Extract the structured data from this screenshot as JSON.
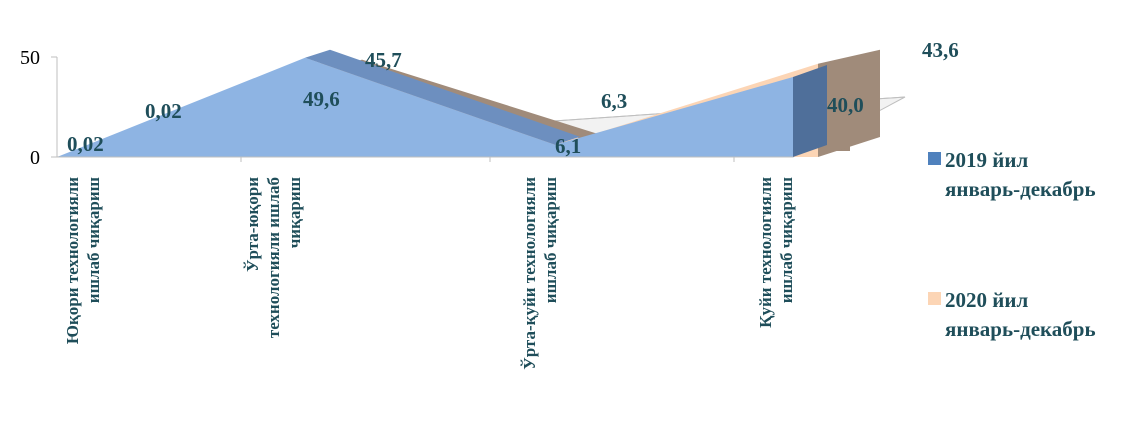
{
  "chart_data": {
    "type": "area",
    "subtype": "3d-area",
    "categories": [
      "Юқори технологияли ишлаб чиқариш",
      "Ўрта-юқори технологияли ишлаб чиқариш",
      "Ўрта-қуйи технологияли ишлаб чиқариш",
      "Қуйи технологияли ишлаб чиқариш"
    ],
    "category_lines": [
      [
        "Юқори технологияли",
        "ишлаб чиқариш"
      ],
      [
        "Ўрта-юқори",
        "технологияли ишлаб",
        "чиқариш"
      ],
      [
        "Ўрта-қуйи технологияли",
        "ишлаб чиқариш"
      ],
      [
        "Қуйи технологияли",
        "ишлаб чиқариш"
      ]
    ],
    "series": [
      {
        "name": "2019 йил январь-декабрь",
        "values": [
          0.02,
          49.6,
          6.1,
          40.0
        ],
        "labels": [
          "0,02",
          "49,6",
          "6,1",
          "40,0"
        ],
        "color": "#8eb4e3"
      },
      {
        "name": "2020 йил январь-декабрь",
        "values": [
          0.02,
          45.7,
          6.3,
          43.6
        ],
        "labels": [
          "0,02",
          "45,7",
          "6,3",
          "43,6"
        ],
        "color": "#fcd5b5"
      }
    ],
    "y_ticks": [
      "0",
      "50"
    ],
    "ylim": [
      0,
      50
    ],
    "grid": false,
    "legend_position": "right",
    "title": "",
    "xlabel": "",
    "ylabel": ""
  },
  "legend": {
    "items": [
      {
        "label": "2019 йил\nянварь-декабрь",
        "color": "#4f81bd"
      },
      {
        "label": "2020 йил\nянварь-декабрь",
        "color": "#fcd5b5"
      }
    ]
  }
}
